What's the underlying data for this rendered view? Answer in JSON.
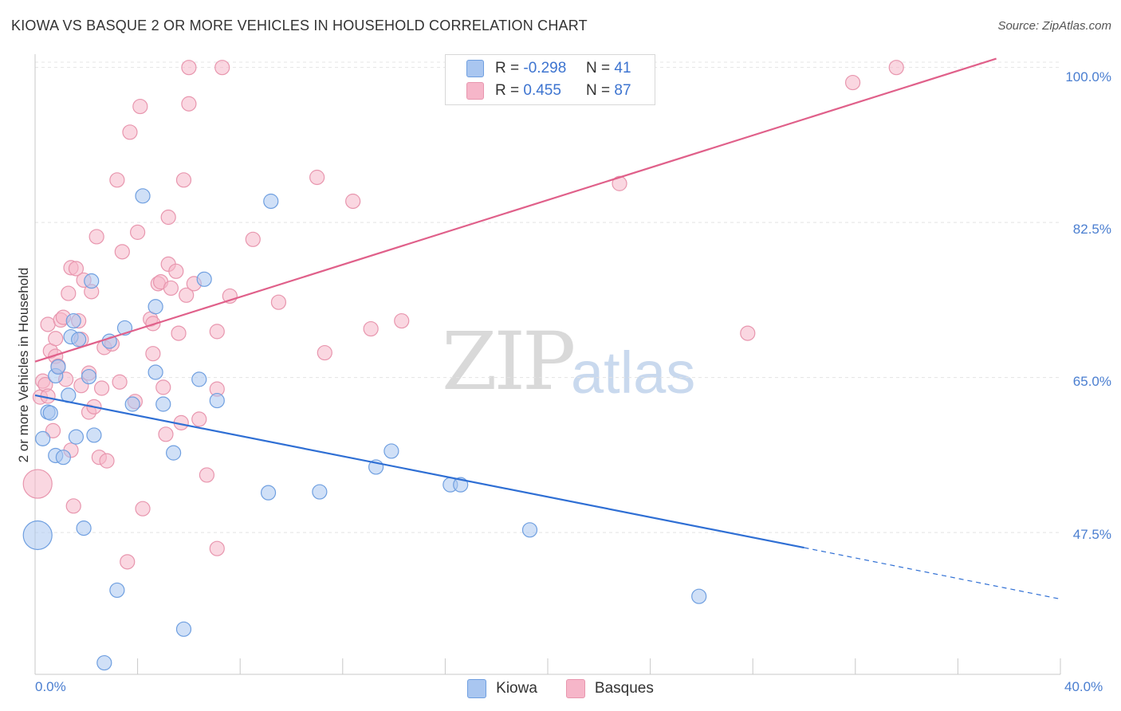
{
  "header": {
    "title": "KIOWA VS BASQUE 2 OR MORE VEHICLES IN HOUSEHOLD CORRELATION CHART",
    "source": "Source: ZipAtlas.com"
  },
  "watermark": {
    "zip": "ZIP",
    "atlas": "atlas"
  },
  "legend": {
    "rows": [
      {
        "r_label": "R =",
        "r_value": "-0.298",
        "n_label": "N =",
        "n_value": "41",
        "color": "#a9c6f0"
      },
      {
        "r_label": "R =",
        "r_value": "0.455",
        "n_label": "N =",
        "n_value": "87",
        "color": "#f6b6c9"
      }
    ]
  },
  "bottom_legend": {
    "kiowa": "Kiowa",
    "basques": "Basques"
  },
  "colors": {
    "kiowa_fill": "#a9c6f0",
    "kiowa_stroke": "#6f9fe0",
    "kiowa_line": "#2f6fd4",
    "basques_fill": "#f6b6c9",
    "basques_stroke": "#e896ae",
    "basques_line": "#e0608a",
    "axis_text": "#4a7ed0",
    "grid": "#e4e4e4"
  },
  "chart_data": {
    "type": "scatter",
    "title": "KIOWA VS BASQUE 2 OR MORE VEHICLES IN HOUSEHOLD CORRELATION CHART",
    "xlabel": "",
    "ylabel": "2 or more Vehicles in Household",
    "xlim": [
      0,
      40
    ],
    "ylim": [
      31.5,
      101.5
    ],
    "x_tick_labels": [
      "0.0%",
      "40.0%"
    ],
    "y_ticks": [
      47.5,
      65.0,
      82.5,
      100.0
    ],
    "y_tick_labels": [
      "47.5%",
      "65.0%",
      "82.5%",
      "100.0%"
    ],
    "grid": true,
    "legend_position": "top-center",
    "series": [
      {
        "name": "Kiowa",
        "points": [
          [
            0.1,
            47.2
          ],
          [
            0.3,
            58.1
          ],
          [
            0.5,
            61.1
          ],
          [
            0.6,
            61.0
          ],
          [
            0.8,
            65.2
          ],
          [
            0.8,
            56.2
          ],
          [
            0.9,
            66.2
          ],
          [
            1.1,
            56.0
          ],
          [
            1.3,
            63.0
          ],
          [
            1.4,
            69.6
          ],
          [
            1.5,
            71.4
          ],
          [
            1.6,
            58.3
          ],
          [
            1.7,
            69.3
          ],
          [
            1.9,
            48.0
          ],
          [
            2.1,
            65.1
          ],
          [
            2.2,
            75.9
          ],
          [
            2.3,
            58.5
          ],
          [
            2.7,
            32.8
          ],
          [
            2.9,
            69.1
          ],
          [
            3.2,
            41.0
          ],
          [
            3.5,
            70.6
          ],
          [
            3.8,
            62.0
          ],
          [
            4.2,
            85.5
          ],
          [
            4.7,
            73.0
          ],
          [
            4.7,
            65.6
          ],
          [
            5.0,
            62.0
          ],
          [
            5.4,
            56.5
          ],
          [
            5.8,
            36.6
          ],
          [
            6.4,
            64.8
          ],
          [
            6.6,
            76.1
          ],
          [
            7.1,
            62.4
          ],
          [
            9.1,
            52.0
          ],
          [
            9.2,
            84.9
          ],
          [
            11.1,
            52.1
          ],
          [
            13.3,
            54.9
          ],
          [
            13.9,
            56.7
          ],
          [
            16.2,
            52.9
          ],
          [
            16.6,
            52.9
          ],
          [
            19.3,
            47.8
          ],
          [
            25.9,
            40.3
          ]
        ],
        "sizes": [
          2.0,
          1,
          1,
          1,
          1,
          1,
          1,
          1,
          1,
          1,
          1,
          1,
          1,
          1,
          1,
          1,
          1,
          1,
          1,
          1,
          1,
          1,
          1,
          1,
          1,
          1,
          1,
          1,
          1,
          1,
          1,
          1,
          1,
          1,
          1,
          1,
          1,
          1,
          1,
          1
        ],
        "trend": {
          "x": [
            0,
            30.0
          ],
          "y": [
            63.0,
            45.8
          ]
        },
        "trend_dashed": {
          "x": [
            30.0,
            40.0
          ],
          "y": [
            45.8,
            40.0
          ]
        }
      },
      {
        "name": "Basques",
        "points": [
          [
            0.1,
            53.0
          ],
          [
            0.2,
            62.8
          ],
          [
            0.3,
            64.6
          ],
          [
            0.4,
            64.2
          ],
          [
            0.5,
            62.9
          ],
          [
            0.5,
            71.0
          ],
          [
            0.6,
            68.0
          ],
          [
            0.7,
            59.0
          ],
          [
            0.8,
            67.4
          ],
          [
            0.8,
            69.4
          ],
          [
            0.9,
            66.3
          ],
          [
            1.0,
            71.5
          ],
          [
            1.1,
            71.8
          ],
          [
            1.2,
            64.8
          ],
          [
            1.3,
            74.5
          ],
          [
            1.4,
            56.8
          ],
          [
            1.5,
            50.5
          ],
          [
            1.4,
            77.4
          ],
          [
            1.6,
            77.3
          ],
          [
            1.7,
            71.4
          ],
          [
            1.8,
            69.3
          ],
          [
            1.8,
            64.1
          ],
          [
            1.9,
            76.0
          ],
          [
            2.1,
            61.1
          ],
          [
            2.1,
            65.5
          ],
          [
            2.2,
            74.7
          ],
          [
            2.3,
            61.7
          ],
          [
            2.4,
            80.9
          ],
          [
            2.5,
            56.0
          ],
          [
            2.6,
            63.8
          ],
          [
            2.7,
            68.4
          ],
          [
            2.8,
            55.6
          ],
          [
            3.0,
            68.8
          ],
          [
            3.2,
            87.3
          ],
          [
            3.3,
            64.5
          ],
          [
            3.4,
            79.2
          ],
          [
            3.6,
            44.2
          ],
          [
            3.7,
            92.7
          ],
          [
            3.9,
            62.3
          ],
          [
            4.0,
            81.4
          ],
          [
            4.1,
            95.6
          ],
          [
            4.2,
            50.2
          ],
          [
            4.5,
            71.6
          ],
          [
            4.6,
            71.1
          ],
          [
            4.6,
            67.7
          ],
          [
            4.8,
            75.6
          ],
          [
            4.9,
            75.8
          ],
          [
            5.0,
            63.9
          ],
          [
            5.1,
            58.6
          ],
          [
            5.2,
            83.1
          ],
          [
            5.2,
            77.8
          ],
          [
            5.3,
            75.1
          ],
          [
            5.5,
            77.0
          ],
          [
            5.6,
            70.0
          ],
          [
            5.7,
            59.9
          ],
          [
            5.8,
            87.3
          ],
          [
            5.9,
            74.3
          ],
          [
            6.0,
            95.9
          ],
          [
            6.0,
            100.0
          ],
          [
            6.2,
            75.6
          ],
          [
            6.4,
            60.3
          ],
          [
            6.7,
            54.0
          ],
          [
            7.1,
            63.7
          ],
          [
            7.1,
            45.7
          ],
          [
            7.1,
            70.2
          ],
          [
            7.3,
            100.0
          ],
          [
            7.6,
            74.2
          ],
          [
            8.5,
            80.6
          ],
          [
            9.5,
            73.5
          ],
          [
            11.0,
            87.6
          ],
          [
            11.3,
            67.8
          ],
          [
            12.4,
            84.9
          ],
          [
            13.1,
            70.5
          ],
          [
            14.3,
            71.4
          ],
          [
            22.8,
            86.9
          ],
          [
            27.8,
            70.0
          ],
          [
            31.9,
            98.3
          ],
          [
            33.6,
            100.0
          ]
        ],
        "sizes": [
          2.0,
          1,
          1,
          1,
          1,
          1,
          1,
          1,
          1,
          1,
          1,
          1,
          1,
          1,
          1,
          1,
          1,
          1,
          1,
          1,
          1,
          1,
          1,
          1,
          1,
          1,
          1,
          1,
          1,
          1,
          1,
          1,
          1,
          1,
          1,
          1,
          1,
          1,
          1,
          1,
          1,
          1,
          1,
          1,
          1,
          1,
          1,
          1,
          1,
          1,
          1,
          1,
          1,
          1,
          1,
          1,
          1,
          1,
          1,
          1,
          1,
          1,
          1,
          1,
          1,
          1,
          1,
          1,
          1,
          1,
          1,
          1,
          1,
          1,
          1,
          1,
          1,
          1
        ],
        "trend": {
          "x": [
            0,
            37.5
          ],
          "y": [
            66.8,
            101.0
          ]
        }
      }
    ]
  }
}
